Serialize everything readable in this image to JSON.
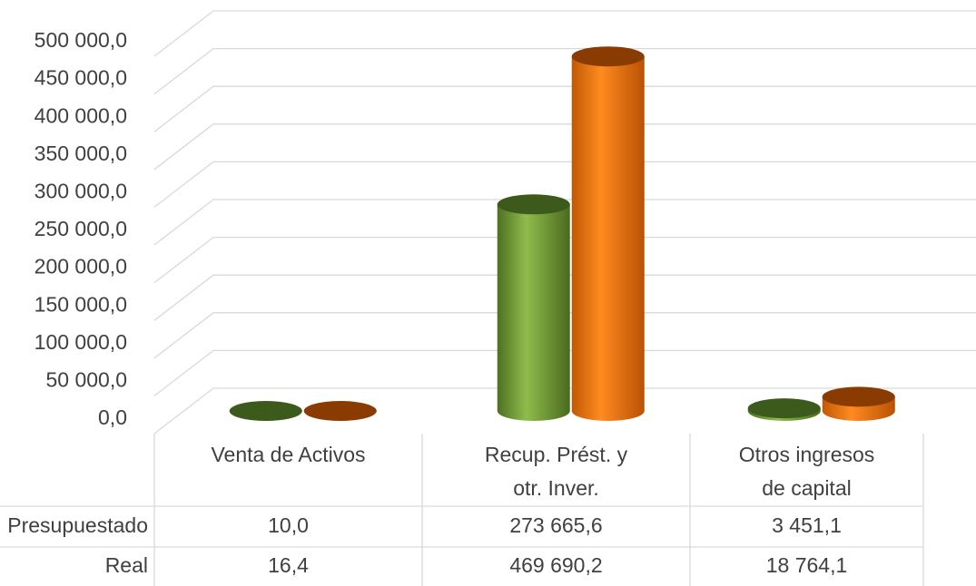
{
  "chart_data": {
    "type": "bar3d",
    "categories": [
      "Venta de Activos",
      [
        "Recup. Prést. y",
        "otr. Inver."
      ],
      [
        "Otros ingresos",
        "de capital"
      ]
    ],
    "series": [
      {
        "name": "Presupuestado",
        "color": "#76a03a",
        "top_color": "#3c5a1c",
        "values": [
          10.0,
          273665.6,
          3451.1
        ],
        "value_labels": [
          "10,0",
          "273 665,6",
          "3 451,1"
        ]
      },
      {
        "name": "Real",
        "color": "#f07812",
        "top_color": "#8a3b02",
        "values": [
          16.4,
          469690.2,
          18764.1
        ],
        "value_labels": [
          "16,4",
          "469 690,2",
          "18 764,1"
        ]
      }
    ],
    "ylim": [
      0,
      500000
    ],
    "yticks": [
      {
        "value": 0,
        "label": "0,0"
      },
      {
        "value": 50000,
        "label": "50 000,0"
      },
      {
        "value": 100000,
        "label": "100 000,0"
      },
      {
        "value": 150000,
        "label": "150 000,0"
      },
      {
        "value": 200000,
        "label": "200 000,0"
      },
      {
        "value": 250000,
        "label": "250 000,0"
      },
      {
        "value": 300000,
        "label": "300 000,0"
      },
      {
        "value": 350000,
        "label": "350 000,0"
      },
      {
        "value": 400000,
        "label": "400 000,0"
      },
      {
        "value": 450000,
        "label": "450 000,0"
      },
      {
        "value": 500000,
        "label": "500 000,0"
      }
    ],
    "grid": true
  }
}
